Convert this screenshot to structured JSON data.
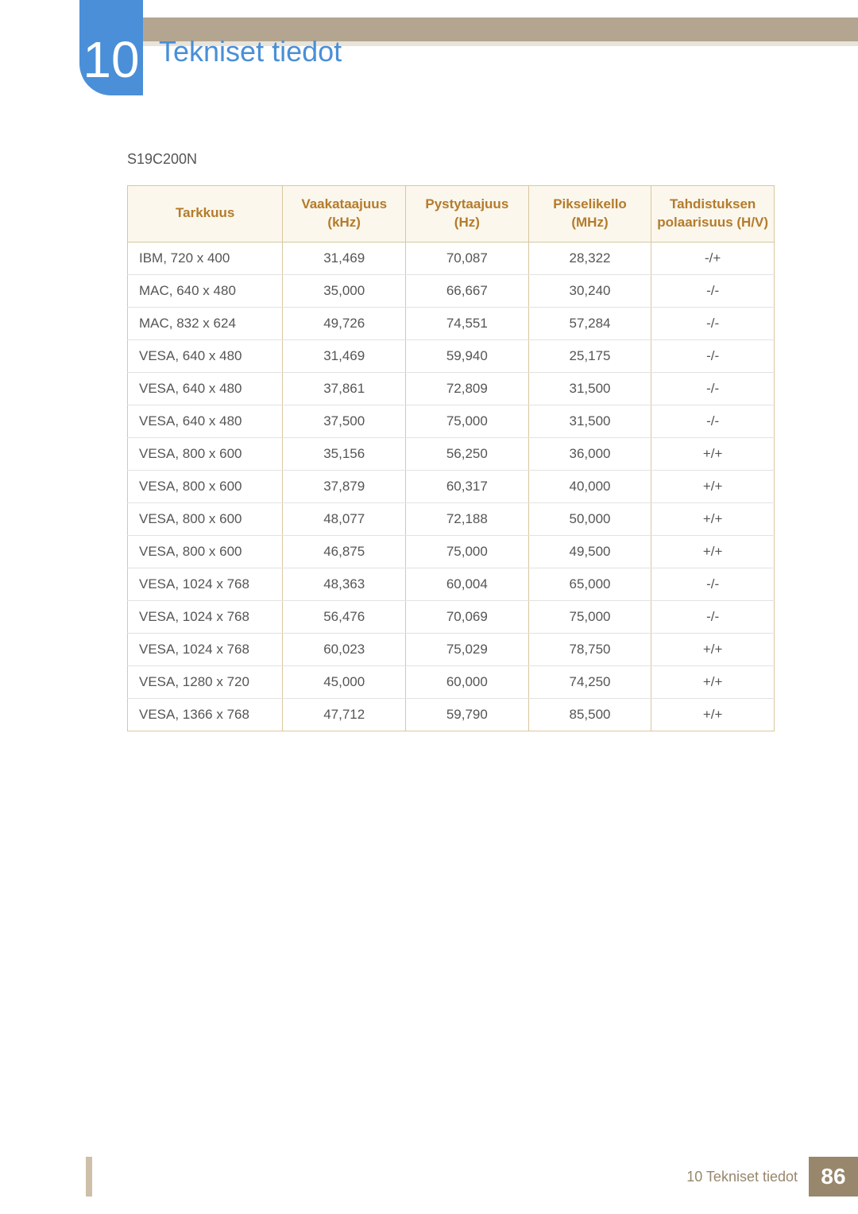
{
  "section_number": "10",
  "page_title": "Tekniset tiedot",
  "model": "S19C200N",
  "colors": {
    "accent_blue": "#4a8fd8",
    "header_brown": "#b47b2b",
    "header_bg": "#fbf7ec",
    "border_tan": "#d9c7a0",
    "row_border": "#e2e2e2",
    "band": "#b4a590",
    "footer_box": "#98876d",
    "text": "#555555"
  },
  "table": {
    "columns": [
      "Tarkkuus",
      "Vaakataajuus (kHz)",
      "Pystytaajuus (Hz)",
      "Pikselikello (MHz)",
      "Tahdistuksen polaarisuus (H/V)"
    ],
    "rows": [
      [
        "IBM, 720 x 400",
        "31,469",
        "70,087",
        "28,322",
        "-/+"
      ],
      [
        "MAC, 640 x 480",
        "35,000",
        "66,667",
        "30,240",
        "-/-"
      ],
      [
        "MAC, 832 x 624",
        "49,726",
        "74,551",
        "57,284",
        "-/-"
      ],
      [
        "VESA, 640 x 480",
        "31,469",
        "59,940",
        "25,175",
        "-/-"
      ],
      [
        "VESA, 640 x 480",
        "37,861",
        "72,809",
        "31,500",
        "-/-"
      ],
      [
        "VESA, 640 x 480",
        "37,500",
        "75,000",
        "31,500",
        "-/-"
      ],
      [
        "VESA, 800 x 600",
        "35,156",
        "56,250",
        "36,000",
        "+/+"
      ],
      [
        "VESA, 800 x 600",
        "37,879",
        "60,317",
        "40,000",
        "+/+"
      ],
      [
        "VESA, 800 x 600",
        "48,077",
        "72,188",
        "50,000",
        "+/+"
      ],
      [
        "VESA, 800 x 600",
        "46,875",
        "75,000",
        "49,500",
        "+/+"
      ],
      [
        "VESA, 1024 x 768",
        "48,363",
        "60,004",
        "65,000",
        "-/-"
      ],
      [
        "VESA, 1024 x 768",
        "56,476",
        "70,069",
        "75,000",
        "-/-"
      ],
      [
        "VESA, 1024 x 768",
        "60,023",
        "75,029",
        "78,750",
        "+/+"
      ],
      [
        "VESA, 1280 x 720",
        "45,000",
        "60,000",
        "74,250",
        "+/+"
      ],
      [
        "VESA, 1366 x 768",
        "47,712",
        "59,790",
        "85,500",
        "+/+"
      ]
    ]
  },
  "footer": {
    "label": "10 Tekniset tiedot",
    "page": "86"
  }
}
